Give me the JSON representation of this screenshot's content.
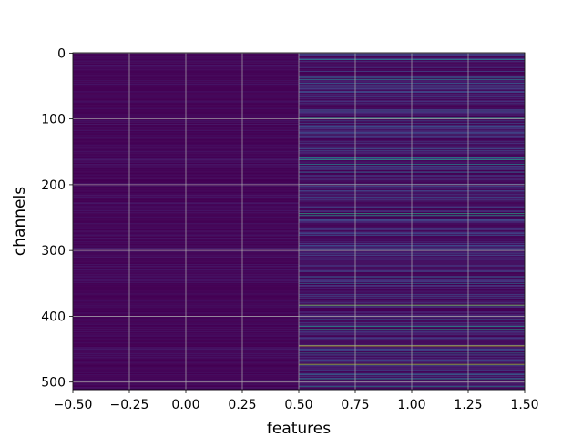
{
  "chart_data": {
    "type": "heatmap",
    "title": "",
    "xlabel": "features",
    "ylabel": "channels",
    "xlim": [
      -0.5,
      1.5
    ],
    "ylim": [
      511.5,
      -0.5
    ],
    "x_ticks": [
      "−0.50",
      "−0.25",
      "0.00",
      "0.25",
      "0.50",
      "0.75",
      "1.00",
      "1.25",
      "1.50"
    ],
    "x_tick_values": [
      -0.5,
      -0.25,
      0.0,
      0.25,
      0.5,
      0.75,
      1.0,
      1.25,
      1.5
    ],
    "y_ticks": [
      "0",
      "100",
      "200",
      "300",
      "400",
      "500"
    ],
    "y_tick_values": [
      0,
      100,
      200,
      300,
      400,
      500
    ],
    "grid": true,
    "colormap": "viridis",
    "columns": [
      0,
      1
    ],
    "n_channels": 512,
    "feature_0_value_range": [
      0.0,
      0.08
    ],
    "feature_1_background_range": [
      0.0,
      0.25
    ],
    "feature_1_highlights": [
      {
        "channel": 10,
        "value": 0.45
      },
      {
        "channel": 37,
        "value": 0.4
      },
      {
        "channel": 40,
        "value": 0.45
      },
      {
        "channel": 46,
        "value": 0.3
      },
      {
        "channel": 99,
        "value": 0.6
      },
      {
        "channel": 143,
        "value": 0.5
      },
      {
        "channel": 158,
        "value": 0.5
      },
      {
        "channel": 162,
        "value": 0.55
      },
      {
        "channel": 169,
        "value": 0.45
      },
      {
        "channel": 181,
        "value": 0.35
      },
      {
        "channel": 244,
        "value": 0.6
      },
      {
        "channel": 247,
        "value": 0.55
      },
      {
        "channel": 300,
        "value": 0.35
      },
      {
        "channel": 340,
        "value": 0.35
      },
      {
        "channel": 350,
        "value": 0.35
      },
      {
        "channel": 383,
        "value": 0.8
      },
      {
        "channel": 405,
        "value": 0.35
      },
      {
        "channel": 415,
        "value": 0.55
      },
      {
        "channel": 420,
        "value": 0.6
      },
      {
        "channel": 445,
        "value": 0.95
      },
      {
        "channel": 456,
        "value": 0.4
      },
      {
        "channel": 473,
        "value": 0.85
      },
      {
        "channel": 488,
        "value": 0.4
      },
      {
        "channel": 495,
        "value": 0.5
      },
      {
        "channel": 507,
        "value": 0.45
      }
    ]
  }
}
